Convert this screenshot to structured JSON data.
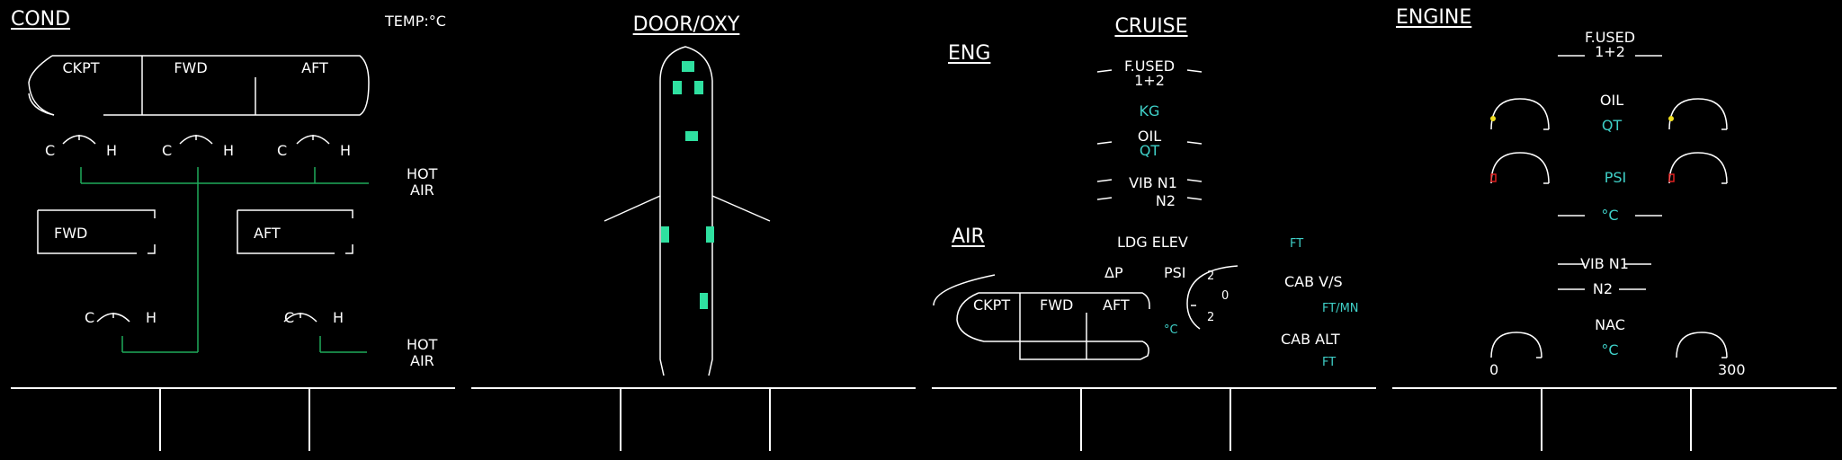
{
  "cond": {
    "title": "COND",
    "temp_label": "TEMP:",
    "temp_unit": "°C",
    "zones": [
      "CKPT",
      "FWD",
      "AFT"
    ],
    "gauge_cold": "C",
    "gauge_hot": "H",
    "cargo_fwd": "FWD",
    "cargo_aft": "AFT",
    "hot_air_1": "HOT",
    "hot_air_2": "AIR",
    "duct_color": "#1faa5a"
  },
  "door": {
    "title": "DOOR/OXY",
    "door_color": "#2fe0a0"
  },
  "cruise": {
    "title": "CRUISE",
    "eng_title": "ENG",
    "fused_1": "F.USED",
    "fused_2": "1+2",
    "kg": "KG",
    "oil": "OIL",
    "qt": "QT",
    "vib_n1": "VIB N1",
    "n2": "N2",
    "air_title": "AIR",
    "ldg_elev": "LDG ELEV",
    "ft": "FT",
    "delta_p": "ΔP",
    "psi": "PSI",
    "cab_vs": "CAB V/S",
    "ft_mn": "FT/MN",
    "cab_alt": "CAB ALT",
    "ft2": "FT",
    "zones": [
      "CKPT",
      "FWD",
      "AFT"
    ],
    "deg_c": "°C",
    "vs_scale": [
      "2",
      "0",
      "2"
    ]
  },
  "engine": {
    "title": "ENGINE",
    "fused_1": "F.USED",
    "fused_2": "1+2",
    "oil": "OIL",
    "qt": "QT",
    "psi": "PSI",
    "deg_c": "°C",
    "vib_n1": "VIB N1",
    "n2": "N2",
    "nac": "NAC",
    "nac_unit": "°C",
    "nac_min": "0",
    "nac_max": "300",
    "needle_yellow": "#f0e020",
    "needle_red": "#e02020"
  }
}
